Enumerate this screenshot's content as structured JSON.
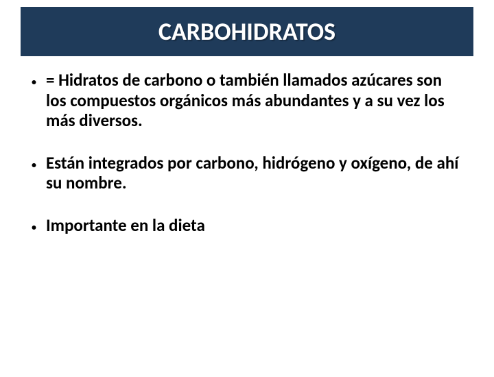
{
  "slide": {
    "title": "CARBOHIDRATOS",
    "title_bar_color": "#1f3b5a",
    "title_text_color": "#ffffff",
    "title_fontsize": 36,
    "body_text_color": "#000000",
    "body_fontsize": 25,
    "bullets": [
      "= Hidratos de carbono o también llamados azúcares son los compuestos orgánicos más abundantes y a su vez los más diversos.",
      "Están integrados por carbono, hidrógeno y oxígeno, de ahí su nombre.",
      "Importante en la dieta"
    ]
  }
}
